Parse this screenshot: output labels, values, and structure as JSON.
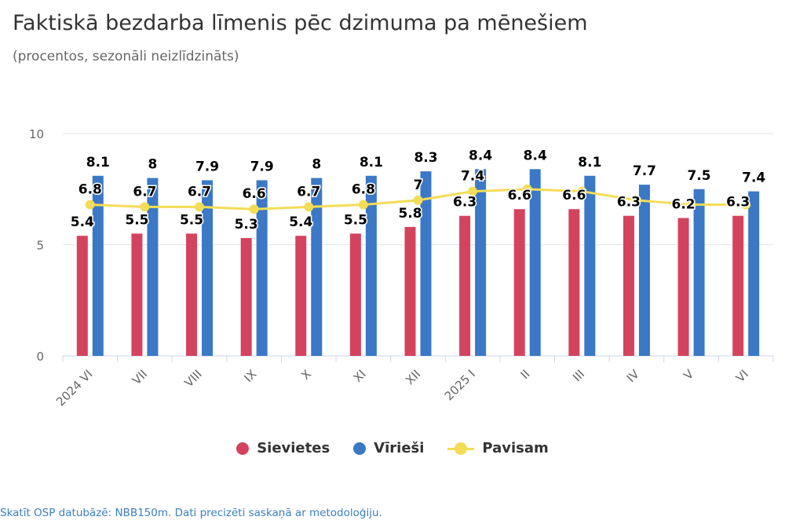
{
  "header": {
    "title": "Faktiskā bezdarba līmenis pēc dzimuma pa mēnešiem",
    "subtitle": "(procentos, sezonāli neizlīdzināts)"
  },
  "colors": {
    "sievietes": "#d4435d",
    "virieSi": "#3b78c6",
    "pavisam": "#f3dd57",
    "grid": "#e6e6e6",
    "axis": "#ccd6eb",
    "tick_text": "#666666"
  },
  "chart_data": {
    "type": "bar",
    "categories": [
      "2024 VI",
      "VII",
      "VIII",
      "IX",
      "X",
      "XI",
      "XII",
      "2025 I",
      "II",
      "III",
      "IV",
      "V",
      "VI"
    ],
    "series": [
      {
        "name": "Sievietes",
        "type": "bar",
        "values": [
          5.4,
          5.5,
          5.5,
          5.3,
          5.4,
          5.5,
          5.8,
          6.3,
          6.6,
          6.6,
          6.3,
          6.2,
          6.3
        ]
      },
      {
        "name": "Vīrieši",
        "type": "bar",
        "values": [
          8.1,
          8,
          7.9,
          7.9,
          8,
          8.1,
          8.3,
          8.4,
          8.4,
          8.1,
          7.7,
          7.5,
          7.4
        ]
      },
      {
        "name": "Pavisam",
        "type": "line",
        "values": [
          6.8,
          6.7,
          6.7,
          6.6,
          6.7,
          6.8,
          7,
          7.4,
          7.5,
          7.4,
          7,
          6.8,
          6.8
        ],
        "labels": [
          "6.8",
          "6.7",
          "6.7",
          "6.6",
          "6.7",
          "6.8",
          "7",
          "7.4",
          "",
          "",
          "",
          "",
          ""
        ]
      }
    ],
    "yticks": [
      0,
      5,
      10
    ],
    "ylim": [
      0,
      10
    ],
    "legend_position": "bottom-center",
    "grid": true
  },
  "legend": [
    {
      "label": "Sievietes"
    },
    {
      "label": "Vīrieši"
    },
    {
      "label": "Pavisam"
    }
  ],
  "footer": {
    "prefix": "Skatīt OSP datubāzē: ",
    "link": "NBB150m",
    "suffix": ". Dati precizēti saskaņā ar metodoloģiju."
  }
}
